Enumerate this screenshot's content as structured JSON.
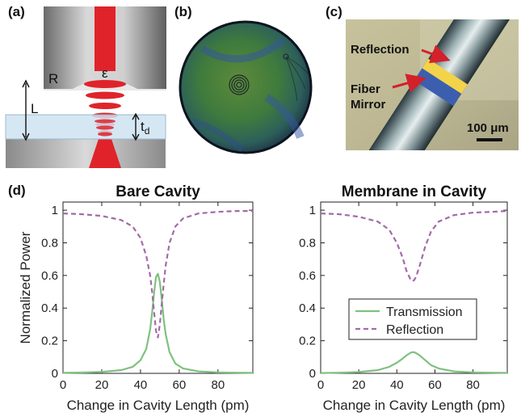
{
  "panels": {
    "a": {
      "label": "(a)",
      "symbols": {
        "R": "R",
        "epsilon": "ε",
        "L": "L",
        "td_main": "t",
        "td_sub": "d"
      }
    },
    "b": {
      "label": "(b)"
    },
    "c": {
      "label": "(c)",
      "reflection_label": "Reflection",
      "fiber_label_line1": "Fiber",
      "fiber_label_line2": "Mirror",
      "scale_bar": "100 μm"
    },
    "d": {
      "label": "(d)"
    }
  },
  "colors": {
    "transmission": "#7fc17f",
    "reflection": "#a46aa8",
    "laser": "#e0232a",
    "membrane": "#cfe3f2"
  },
  "chart_data": [
    {
      "type": "line",
      "title": "Bare Cavity",
      "xlabel": "Change in Cavity Length (pm)",
      "ylabel": "Normalized Power",
      "xlim": [
        0,
        98
      ],
      "ylim": [
        0,
        1.05
      ],
      "xticks": [
        0,
        20,
        40,
        60,
        80
      ],
      "yticks": [
        0,
        0.2,
        0.4,
        0.6,
        0.8,
        1
      ],
      "ytick_labels": [
        "0",
        "0.2",
        "0.4",
        "0.6",
        "0.8",
        "1"
      ],
      "series": [
        {
          "name": "Transmission",
          "style": "solid",
          "x": [
            0,
            10,
            20,
            30,
            36,
            40,
            43,
            45,
            46,
            47,
            48,
            49,
            50,
            51,
            52,
            53,
            55,
            58,
            62,
            70,
            80,
            90,
            98
          ],
          "y": [
            0.003,
            0.005,
            0.009,
            0.02,
            0.04,
            0.08,
            0.15,
            0.27,
            0.37,
            0.49,
            0.59,
            0.61,
            0.56,
            0.45,
            0.33,
            0.24,
            0.13,
            0.06,
            0.03,
            0.012,
            0.006,
            0.004,
            0.003
          ]
        },
        {
          "name": "Reflection",
          "style": "dashed",
          "x": [
            0,
            10,
            20,
            30,
            36,
            40,
            43,
            45,
            46,
            47,
            48,
            49,
            50,
            51,
            52,
            53,
            55,
            58,
            62,
            70,
            80,
            90,
            98
          ],
          "y": [
            0.98,
            0.975,
            0.965,
            0.94,
            0.9,
            0.83,
            0.72,
            0.6,
            0.5,
            0.38,
            0.26,
            0.22,
            0.3,
            0.43,
            0.55,
            0.66,
            0.8,
            0.9,
            0.95,
            0.98,
            0.99,
            0.995,
            0.995
          ]
        }
      ]
    },
    {
      "type": "line",
      "title": "Membrane in Cavity",
      "xlabel": "Change in Cavity Length (pm)",
      "ylabel": "",
      "xlim": [
        0,
        98
      ],
      "ylim": [
        0,
        1.05
      ],
      "xticks": [
        0,
        20,
        40,
        60,
        80
      ],
      "yticks": [
        0,
        0.2,
        0.4,
        0.6,
        0.8,
        1
      ],
      "ytick_labels": [
        "0",
        "0.2",
        "0.4",
        "0.6",
        "0.8",
        "1"
      ],
      "legend": "center-right",
      "series": [
        {
          "name": "Transmission",
          "style": "solid",
          "x": [
            0,
            10,
            20,
            30,
            36,
            40,
            43,
            45,
            47,
            48,
            49,
            50,
            52,
            55,
            58,
            62,
            70,
            80,
            90,
            98
          ],
          "y": [
            0.002,
            0.004,
            0.008,
            0.02,
            0.04,
            0.065,
            0.09,
            0.11,
            0.125,
            0.13,
            0.13,
            0.125,
            0.11,
            0.08,
            0.05,
            0.03,
            0.012,
            0.006,
            0.004,
            0.003
          ]
        },
        {
          "name": "Reflection",
          "style": "dashed",
          "x": [
            0,
            10,
            20,
            30,
            36,
            40,
            43,
            45,
            47,
            48,
            49,
            50,
            52,
            55,
            58,
            62,
            70,
            80,
            90,
            98
          ],
          "y": [
            0.98,
            0.975,
            0.96,
            0.93,
            0.88,
            0.8,
            0.71,
            0.63,
            0.58,
            0.565,
            0.57,
            0.59,
            0.66,
            0.78,
            0.87,
            0.93,
            0.97,
            0.985,
            0.99,
            0.995
          ]
        }
      ]
    }
  ]
}
